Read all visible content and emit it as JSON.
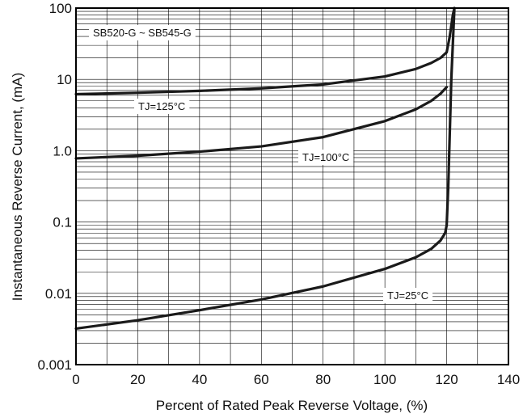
{
  "chart_data": {
    "type": "line",
    "title": "",
    "xlabel": "Percent of Rated Peak Reverse Voltage, (%)",
    "ylabel": "Instantaneous Reverse Current, (mA)",
    "xlim": [
      0,
      140
    ],
    "ylim": [
      0.001,
      100
    ],
    "yscale": "log",
    "grid": true,
    "x_ticks": [
      0,
      20,
      40,
      60,
      80,
      100,
      120,
      140
    ],
    "x_tick_labels": [
      "0",
      "20",
      "40",
      "60",
      "80",
      "100",
      "120",
      "140"
    ],
    "y_ticks": [
      0.001,
      0.01,
      0.1,
      1,
      10,
      100
    ],
    "y_tick_labels": [
      "0.001",
      "0.01",
      "0.1",
      "1.0",
      "10",
      "100"
    ],
    "annotations": {
      "part_range": "SB520-G ~ SB545-G",
      "tj125": "TJ=125°C",
      "tj100": "TJ=100°C",
      "tj25": "TJ=25°C"
    },
    "series": [
      {
        "label": "TJ=125°C",
        "x": [
          0,
          20,
          40,
          60,
          80,
          100,
          110,
          115,
          118,
          120,
          121,
          122,
          122.5
        ],
        "y": [
          6.2,
          6.5,
          6.9,
          7.5,
          8.5,
          11,
          14,
          17,
          20,
          24,
          40,
          80,
          100
        ]
      },
      {
        "label": "TJ=100°C",
        "x": [
          0,
          20,
          40,
          60,
          80,
          100,
          110,
          115,
          118,
          120
        ],
        "y": [
          0.78,
          0.85,
          0.97,
          1.15,
          1.55,
          2.6,
          3.8,
          5.0,
          6.3,
          7.8
        ]
      },
      {
        "label": "TJ=25°C",
        "x": [
          0,
          20,
          40,
          60,
          80,
          100,
          110,
          115,
          118,
          119.5,
          120,
          120.5,
          121.5,
          122.5
        ],
        "y": [
          0.0032,
          0.0042,
          0.0058,
          0.0082,
          0.0125,
          0.022,
          0.032,
          0.042,
          0.055,
          0.07,
          0.09,
          0.3,
          10,
          100
        ]
      }
    ]
  }
}
